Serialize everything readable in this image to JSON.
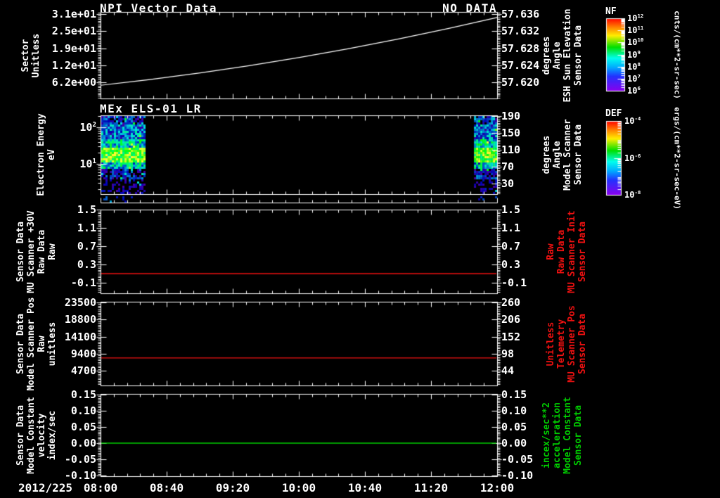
{
  "figure": {
    "background": "#000000",
    "date_label": "2012/225",
    "time_ticks": [
      "08:00",
      "08:40",
      "09:20",
      "10:00",
      "10:40",
      "11:20",
      "12:00"
    ]
  },
  "colorbars": [
    {
      "title": "NF",
      "ticks": [
        "10^12",
        "10^11",
        "10^10",
        "10^9",
        "10^8",
        "10^7",
        "10^6"
      ],
      "unit": "cnts/(cm**2-sr-sec)"
    },
    {
      "title": "DEF",
      "ticks": [
        "10^-4",
        "10^-6",
        "10^-8"
      ],
      "unit": "ergs/(cm**2-sr-sec-eV)"
    }
  ],
  "chart_data": [
    {
      "type": "line",
      "title": "NPI Vector Data",
      "right_title": "NO DATA",
      "left_axis": {
        "label_lines": [
          "Sector",
          "Unitless"
        ],
        "ticks": [
          "3.1e+01",
          "2.5e+01",
          "1.9e+01",
          "1.2e+01",
          "6.2e+00"
        ],
        "color": "#ffffff"
      },
      "right_axis": {
        "label_lines": [
          "Sensor Data",
          "ESH Sun Elevation",
          "Angle",
          "degrees"
        ],
        "ticks": [
          "57.636",
          "57.632",
          "57.628",
          "57.624",
          "57.620"
        ],
        "color": "#ffffff"
      },
      "series": [
        {
          "name": "ESH Sun Elevation Angle",
          "color": "#ffffff",
          "axis": "right",
          "x": [
            "08:00",
            "10:00",
            "12:00"
          ],
          "y": [
            57.6193,
            57.6258,
            57.6352
          ],
          "shape": "smooth slowly rising ramp, slightly concave up"
        }
      ]
    },
    {
      "type": "heatmap",
      "title": "MEx ELS-01 LR",
      "left_axis": {
        "label_lines": [
          "Electron Energy",
          "eV"
        ],
        "scale": "log",
        "ticks": [
          "10^2",
          "10^1"
        ],
        "range_eV": [
          1.4,
          250
        ],
        "color": "#ffffff"
      },
      "right_axis": {
        "label_lines": [
          "Sensor Data",
          "Model Scanner",
          "Angle",
          "degrees"
        ],
        "ticks": [
          "190",
          "150",
          "110",
          "70",
          "30"
        ],
        "color": "#ffffff"
      },
      "heatmap": {
        "colorbar": "DEF",
        "data_intervals": [
          [
            "08:00",
            "08:27"
          ],
          [
            "11:46",
            "12:00"
          ]
        ],
        "gap_interval": [
          "08:27",
          "11:46"
        ],
        "enhanced_band_eV": [
          8,
          40
        ],
        "description": "Electron energy-time spectrogram: bright green/cyan flux band near 10-40 eV, blue low-flux speckle above, sparse dark-blue counts below ~5 eV; central interval has no data."
      }
    },
    {
      "type": "line",
      "left_axis": {
        "label_lines": [
          "Sensor Data",
          "MU Scanner +30V",
          "Raw Data",
          "Raw"
        ],
        "ticks": [
          "1.5",
          "1.1",
          "0.7",
          "0.3",
          "-0.1"
        ],
        "color": "#ffffff"
      },
      "right_axis": {
        "label_lines": [
          "Sensor Data",
          "MU Scanner Init",
          "Raw Data",
          "Raw"
        ],
        "ticks": [
          "1.5",
          "1.1",
          "0.7",
          "0.3",
          "-0.1"
        ],
        "color": "#ee1111"
      },
      "series": [
        {
          "name": "MU Scanner +30V Raw",
          "color": "#ee1111",
          "axis": "left",
          "constant_value": 0.1
        }
      ]
    },
    {
      "type": "line",
      "left_axis": {
        "label_lines": [
          "Sensor Data",
          "Model Scanner Pos",
          "Raw",
          "unitless"
        ],
        "ticks": [
          "23500",
          "18800",
          "14100",
          "9400",
          "4700"
        ],
        "color": "#ffffff"
      },
      "right_axis": {
        "label_lines": [
          "Sensor Data",
          "MU Scanner Pos",
          "Telemetry",
          "Unitless"
        ],
        "ticks": [
          "260",
          "206",
          "152",
          "98",
          "44"
        ],
        "color": "#ee1111"
      },
      "series": [
        {
          "name": "Model Scanner Pos Raw",
          "color": "#ee1111",
          "axis": "left",
          "constant_value": 8200
        }
      ]
    },
    {
      "type": "line",
      "left_axis": {
        "label_lines": [
          "Sensor Data",
          "Model Constant",
          "velocity",
          "index/sec"
        ],
        "ticks": [
          "0.15",
          "0.10",
          "0.05",
          "0.00",
          "-0.05",
          "-0.10"
        ],
        "color": "#ffffff"
      },
      "right_axis": {
        "label_lines": [
          "Sensor Data",
          "Model Constant",
          "acceleration",
          "incex/sec**2"
        ],
        "ticks": [
          "0.15",
          "0.10",
          "0.05",
          "0.00",
          "-0.05",
          "-0.10"
        ],
        "color": "#00cc00"
      },
      "series": [
        {
          "name": "Model Constant velocity",
          "color": "#00cc00",
          "axis": "left",
          "constant_value": 0.0
        }
      ]
    }
  ]
}
